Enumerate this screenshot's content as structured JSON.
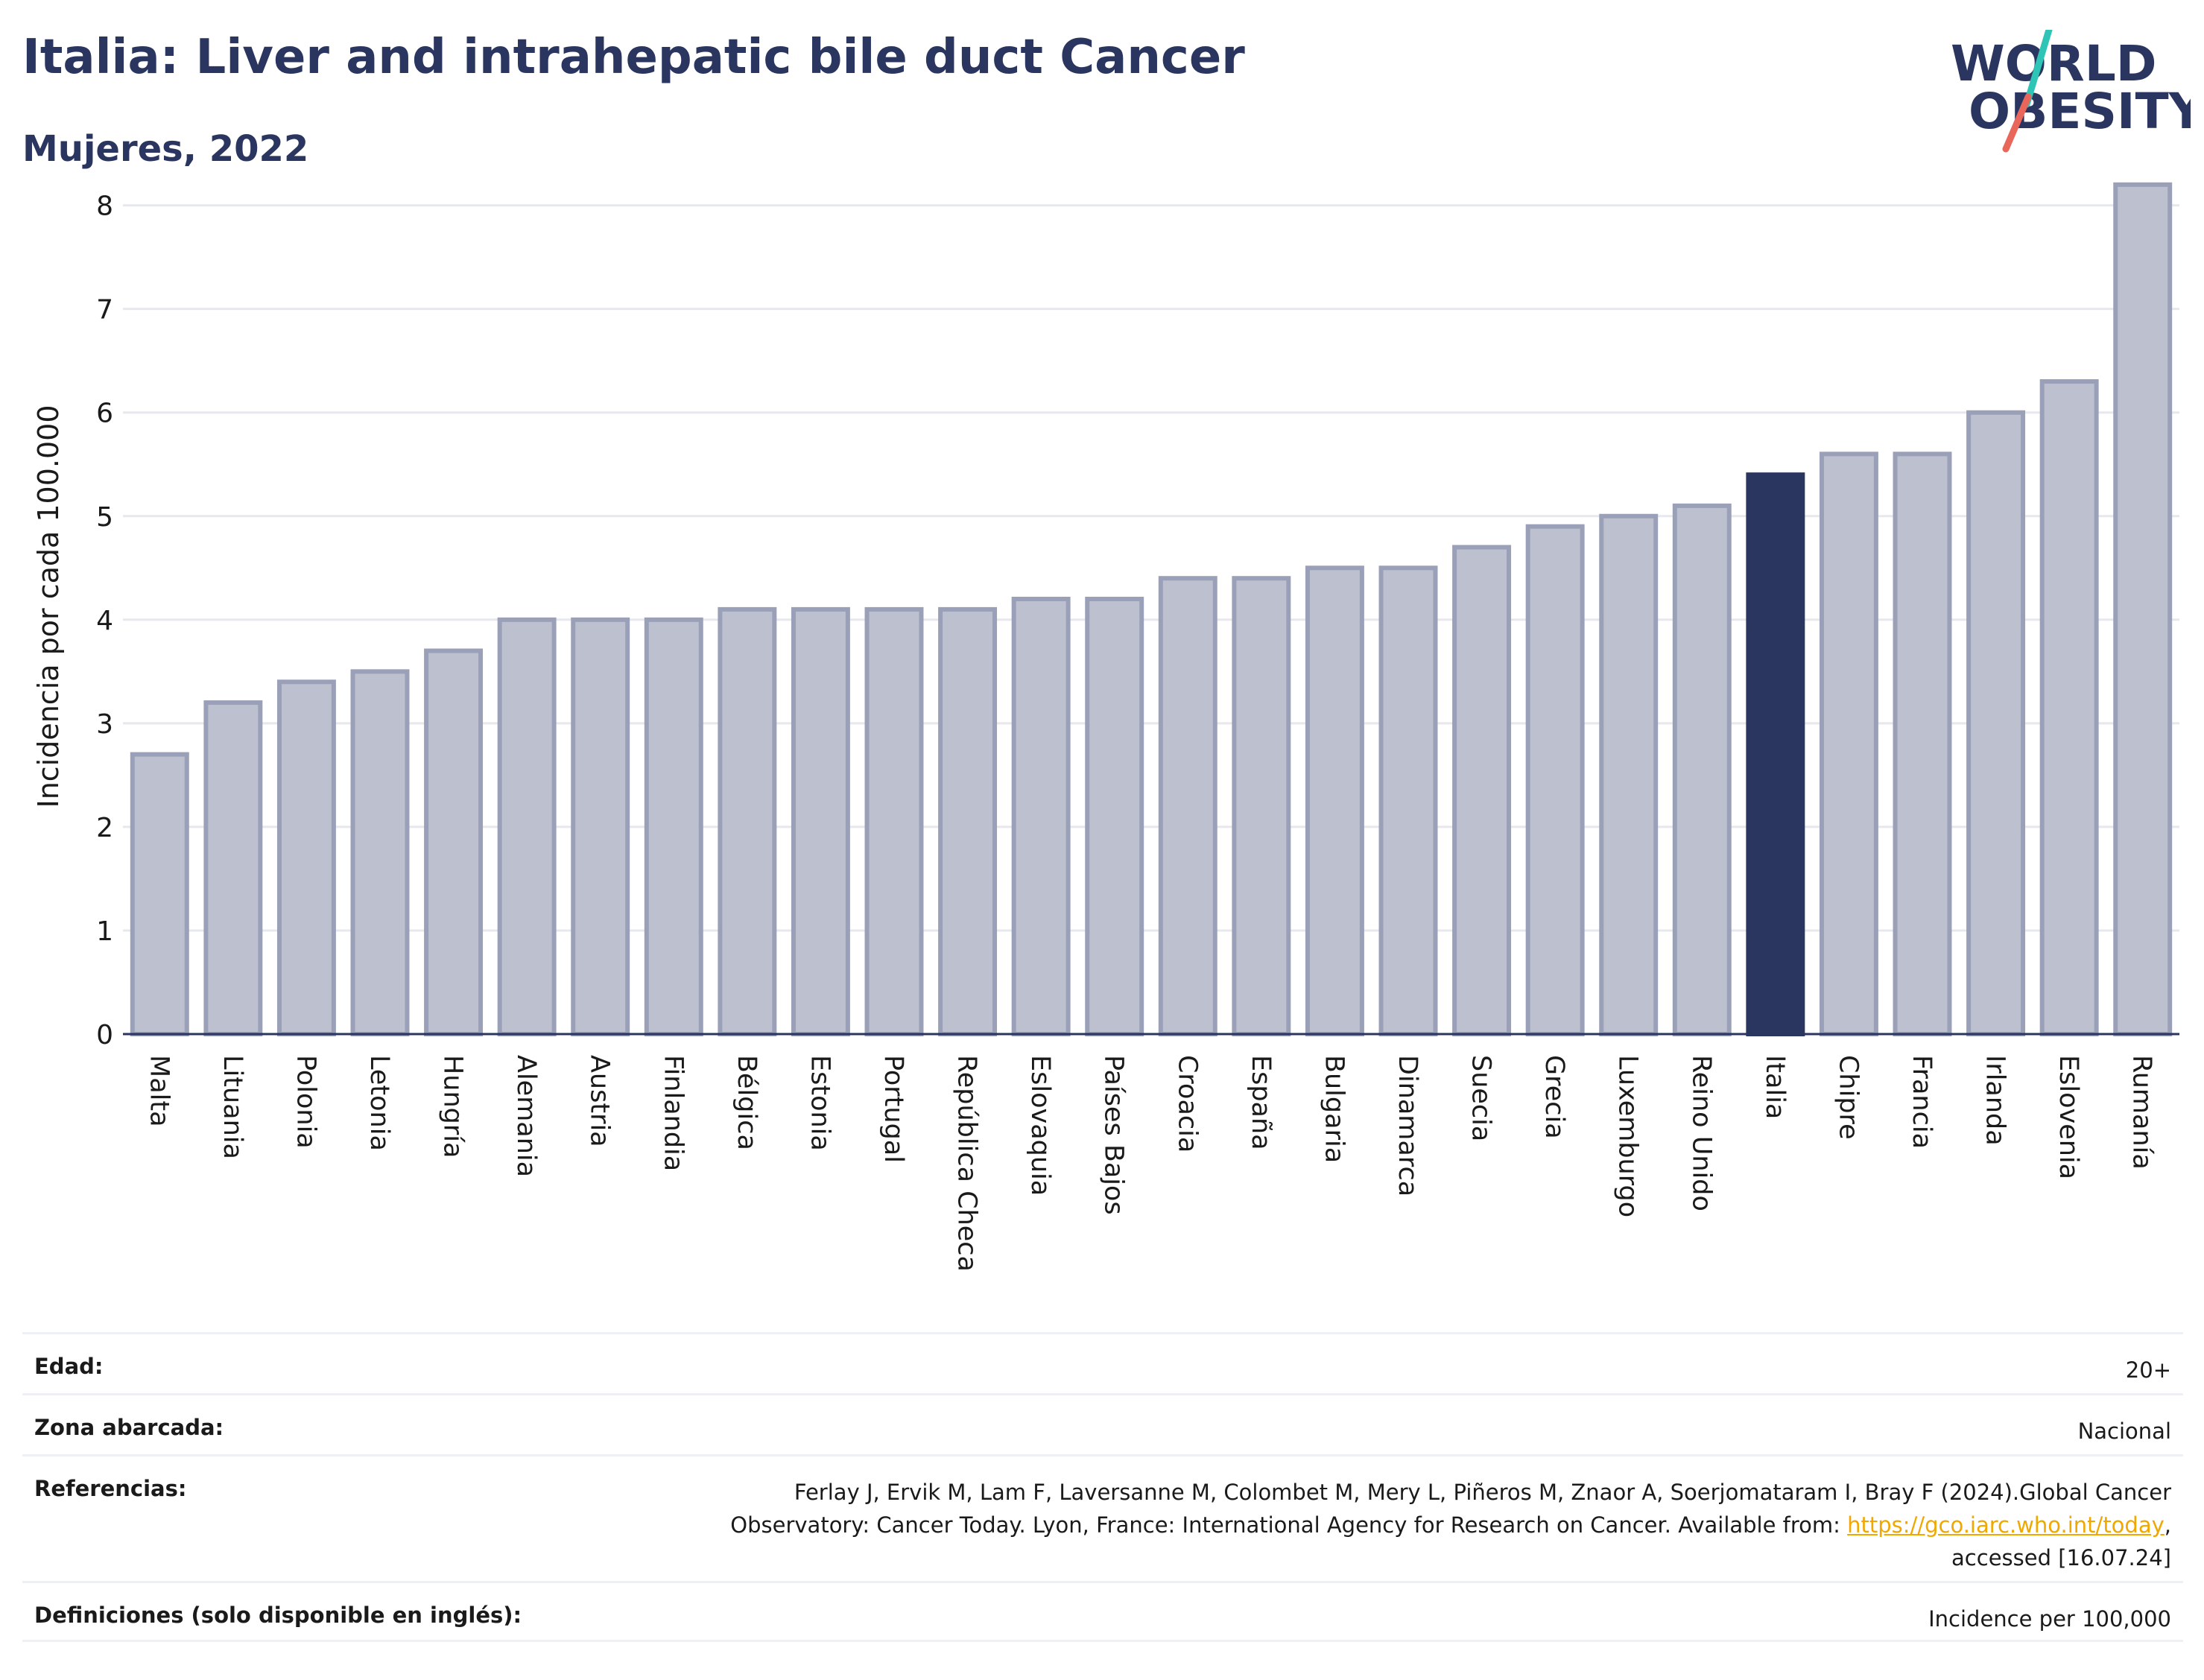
{
  "header": {
    "title": "Italia: Liver and intrahepatic bile duct Cancer",
    "subtitle": "Mujeres, 2022"
  },
  "logo": {
    "line1": "WORLD",
    "line2": "OBESITY",
    "slash_colors": [
      "#2ec4b6",
      "#e8675a"
    ]
  },
  "colors": {
    "bar": "#bcc0cf",
    "bar_stroke": "#9aa0b8",
    "highlight": "#2a3560",
    "grid": "#e6e8ee",
    "axis": "#2a3560"
  },
  "chart_data": {
    "type": "bar",
    "ylabel": "Incidencia por cada 100.000",
    "xlabel": "",
    "ylim": [
      0,
      8.4
    ],
    "yticks": [
      0,
      1,
      2,
      3,
      4,
      5,
      6,
      7,
      8
    ],
    "grid": true,
    "highlight": "Italia",
    "categories": [
      "Malta",
      "Lituania",
      "Polonia",
      "Letonia",
      "Hungría",
      "Alemania",
      "Austria",
      "Finlandia",
      "Bélgica",
      "Estonia",
      "Portugal",
      "República Checa",
      "Eslovaquia",
      "Países Bajos",
      "Croacia",
      "España",
      "Bulgaria",
      "Dinamarca",
      "Suecia",
      "Grecia",
      "Luxemburgo",
      "Reino Unido",
      "Italia",
      "Chipre",
      "Francia",
      "Irlanda",
      "Eslovenia",
      "Rumanía"
    ],
    "values": [
      2.7,
      3.2,
      3.4,
      3.5,
      3.7,
      4.0,
      4.0,
      4.0,
      4.1,
      4.1,
      4.1,
      4.1,
      4.2,
      4.2,
      4.4,
      4.4,
      4.5,
      4.5,
      4.7,
      4.9,
      5.0,
      5.1,
      5.4,
      5.6,
      5.6,
      6.0,
      6.3,
      8.2
    ]
  },
  "meta": {
    "edad_label": "Edad:",
    "edad_value": "20+",
    "zona_label": "Zona abarcada:",
    "zona_value": "Nacional",
    "ref_label": "Referencias:",
    "ref_line1": "Ferlay J, Ervik M, Lam F, Laversanne M, Colombet M, Mery L, Piñeros M, Znaor A, Soerjomataram I, Bray F (2024).Global Cancer",
    "ref_line2_pre": "Observatory: Cancer Today. Lyon, France: International Agency for Research on Cancer. Available from: ",
    "ref_link": "https://gco.iarc.who.int/today",
    "ref_line2_post": ",",
    "ref_line3": "accessed [16.07.24]",
    "def_label": "Definiciones (solo disponible en inglés):",
    "def_value": "Incidence per 100,000"
  }
}
